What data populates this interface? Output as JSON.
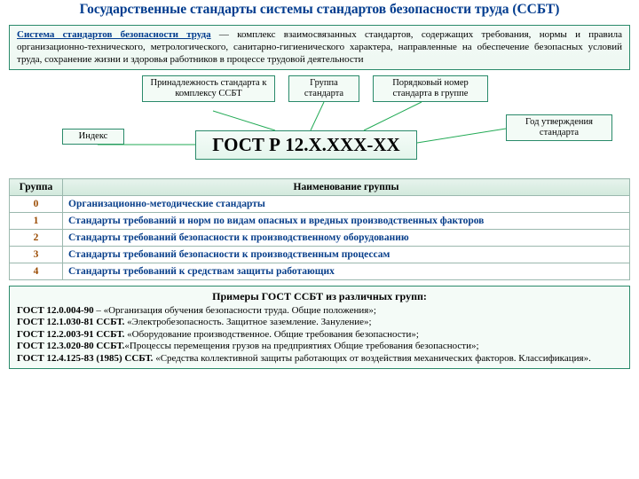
{
  "title": "Государственные стандарты системы стандартов безопасности труда (ССБТ)",
  "intro": {
    "term": "Система стандартов безопасности труда",
    "rest": " — комплекс взаимосвязанных стандартов, содержащих требования, нормы и правила организационно-технического, метрологического, санитарно-гигиенического характера, направленные на обеспечение безопасных условий труда, сохранение жизни и здоровья работников в процессе трудовой деятельности"
  },
  "code": "ГОСТ Р 12.X.XXX-XX",
  "tags": {
    "index": "Индекс",
    "belong": "Принадлежность стандарта к комплексу ССБТ",
    "group": "Группа стандарта",
    "seq": "Порядковый номер стандарта в группе",
    "year": "Год утверждения стандарта"
  },
  "table": {
    "headers": {
      "col1": "Группа",
      "col2": "Наименование группы"
    },
    "rows": [
      {
        "n": "0",
        "name": "Организационно-методические стандарты"
      },
      {
        "n": "1",
        "name": "Стандарты требований и норм по видам опасных и вредных производственных факторов"
      },
      {
        "n": "2",
        "name": "Стандарты требований безопасности к производственному оборудованию"
      },
      {
        "n": "3",
        "name": "Стандарты требований безопасности к производственным процессам"
      },
      {
        "n": "4",
        "name": "Стандарты требований к средствам защиты работающих"
      }
    ]
  },
  "examples": {
    "title": "Примеры ГОСТ ССБТ из различных групп:",
    "lines": [
      {
        "code": "ГОСТ 12.0.004-90",
        "text": " – «Организация обучения безопасности труда. Общие положения»;"
      },
      {
        "code": "ГОСТ 12.1.030-81 ССБТ.",
        "text": " «Электробезопасность. Защитное заземление. Зануление»;"
      },
      {
        "code": "ГОСТ 12.2.003-91 ССБТ.",
        "text": " «Оборудование производственное. Общие требования безопасности»;"
      },
      {
        "code": "ГОСТ 12.3.020-80 ССБТ.",
        "text": "«Процессы перемещения грузов на предприятиях Общие требования безопасности»;"
      },
      {
        "code": "ГОСТ 12.4.125-83 (1985) ССБТ.",
        "text": " «Средства коллективной защиты работающих от воздействия механических факторов. Классификация»."
      }
    ]
  },
  "colors": {
    "title_color": "#003b8e",
    "border_green": "#2a8a6a",
    "row_orange": "#9a4a00",
    "row_blue": "#073e8a"
  }
}
